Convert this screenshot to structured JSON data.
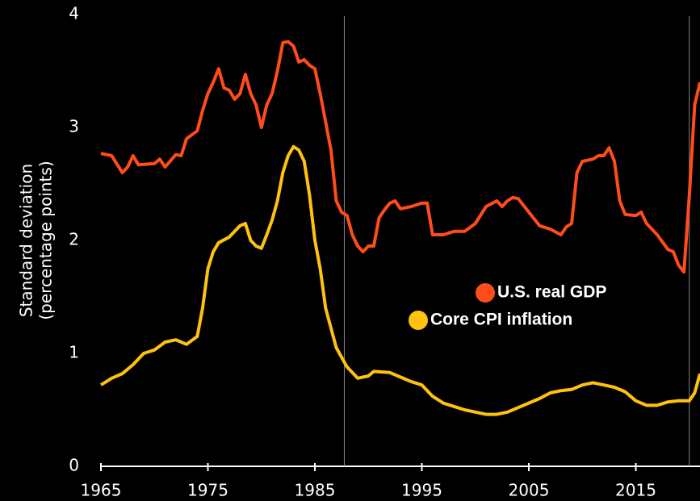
{
  "chart_data": {
    "type": "line",
    "ylabel": [
      "Standard deviation",
      "(percentage points)"
    ],
    "xlim": [
      1965,
      2021
    ],
    "ylim": [
      0,
      4
    ],
    "xticks": [
      1965,
      1975,
      1985,
      1995,
      2005,
      2015
    ],
    "yticks": [
      0,
      1,
      2,
      3,
      4
    ],
    "reference_lines": [
      1987.75,
      2020
    ],
    "series": [
      {
        "name": "U.S. real GDP",
        "color": "#ff4c1a",
        "x": [
          1965,
          1966,
          1967,
          1967.5,
          1968,
          1968.5,
          1970,
          1970.5,
          1971,
          1972,
          1972.5,
          1973,
          1974,
          1974.5,
          1975,
          1975.5,
          1976,
          1976.5,
          1977,
          1977.5,
          1978,
          1978.5,
          1979,
          1979.5,
          1980,
          1980.5,
          1981,
          1981.5,
          1982,
          1982.5,
          1983,
          1983.5,
          1984,
          1984.5,
          1985,
          1985.5,
          1986,
          1986.5,
          1987,
          1987.5,
          1988,
          1988.5,
          1989,
          1989.5,
          1990,
          1990.5,
          1991,
          1991.5,
          1992,
          1992.5,
          1993,
          1994,
          1995,
          1995.5,
          1996,
          1997,
          1998,
          1999,
          2000,
          2001,
          2002,
          2002.5,
          2003,
          2003.5,
          2004,
          2005,
          2006,
          2007,
          2008,
          2008.5,
          2009,
          2009.5,
          2010,
          2011,
          2011.5,
          2012,
          2012.5,
          2013,
          2013.5,
          2014,
          2015,
          2015.5,
          2016,
          2017,
          2018,
          2018.5,
          2019,
          2019.5,
          2020,
          2020.5,
          2021
        ],
        "values": [
          2.77,
          2.75,
          2.6,
          2.65,
          2.75,
          2.67,
          2.68,
          2.72,
          2.65,
          2.76,
          2.75,
          2.9,
          2.97,
          3.15,
          3.3,
          3.4,
          3.52,
          3.35,
          3.33,
          3.25,
          3.3,
          3.47,
          3.3,
          3.2,
          3.0,
          3.2,
          3.3,
          3.5,
          3.75,
          3.76,
          3.72,
          3.58,
          3.6,
          3.55,
          3.52,
          3.3,
          3.05,
          2.8,
          2.35,
          2.25,
          2.22,
          2.05,
          1.95,
          1.9,
          1.95,
          1.95,
          2.2,
          2.27,
          2.33,
          2.35,
          2.28,
          2.3,
          2.33,
          2.33,
          2.05,
          2.05,
          2.08,
          2.08,
          2.15,
          2.3,
          2.35,
          2.3,
          2.35,
          2.38,
          2.37,
          2.25,
          2.13,
          2.1,
          2.05,
          2.12,
          2.15,
          2.6,
          2.7,
          2.72,
          2.75,
          2.75,
          2.82,
          2.7,
          2.35,
          2.23,
          2.22,
          2.25,
          2.15,
          2.05,
          1.92,
          1.9,
          1.78,
          1.72,
          2.4,
          3.2,
          3.4
        ]
      },
      {
        "name": "Core CPI inflation",
        "color": "#ffc20e",
        "x": [
          1965,
          1966,
          1967,
          1968,
          1969,
          1970,
          1971,
          1972,
          1973,
          1974,
          1974.5,
          1975,
          1975.5,
          1976,
          1977,
          1978,
          1978.5,
          1979,
          1979.5,
          1980,
          1980.5,
          1981,
          1981.5,
          1982,
          1982.5,
          1983,
          1983.5,
          1984,
          1984.5,
          1985,
          1985.5,
          1986,
          1987,
          1988,
          1989,
          1990,
          1990.5,
          1992,
          1993,
          1994,
          1995,
          1996,
          1997,
          1998,
          1999,
          2000,
          2001,
          2002,
          2003,
          2004,
          2005,
          2006,
          2007,
          2008,
          2009,
          2010,
          2011,
          2012,
          2013,
          2014,
          2015,
          2016,
          2017,
          2018,
          2019,
          2020,
          2020.5,
          2021
        ],
        "values": [
          0.72,
          0.78,
          0.82,
          0.9,
          1.0,
          1.03,
          1.1,
          1.12,
          1.08,
          1.15,
          1.4,
          1.75,
          1.9,
          1.98,
          2.03,
          2.13,
          2.15,
          2.0,
          1.95,
          1.93,
          2.05,
          2.18,
          2.35,
          2.6,
          2.75,
          2.83,
          2.8,
          2.7,
          2.4,
          2.0,
          1.75,
          1.4,
          1.05,
          0.88,
          0.78,
          0.8,
          0.84,
          0.83,
          0.79,
          0.75,
          0.72,
          0.62,
          0.56,
          0.53,
          0.5,
          0.48,
          0.46,
          0.46,
          0.48,
          0.52,
          0.56,
          0.6,
          0.65,
          0.67,
          0.68,
          0.72,
          0.74,
          0.72,
          0.7,
          0.66,
          0.58,
          0.54,
          0.54,
          0.57,
          0.58,
          0.58,
          0.65,
          0.82
        ]
      }
    ]
  }
}
